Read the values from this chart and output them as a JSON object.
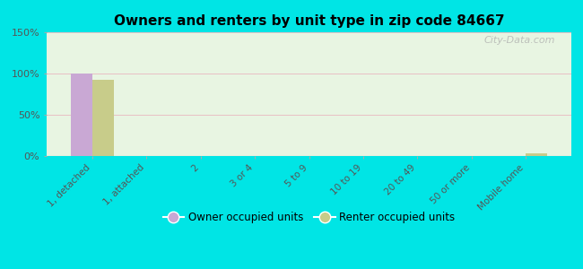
{
  "title": "Owners and renters by unit type in zip code 84667",
  "categories": [
    "1, detached",
    "1, attached",
    "2",
    "3 or 4",
    "5 to 9",
    "10 to 19",
    "20 to 49",
    "50 or more",
    "Mobile home"
  ],
  "owner_values": [
    100,
    0,
    0,
    0,
    0,
    0,
    0,
    0,
    0
  ],
  "renter_values": [
    92,
    0,
    0,
    0,
    0,
    0,
    0,
    0,
    3
  ],
  "owner_color": "#c9a8d4",
  "renter_color": "#c8cc8a",
  "background_color": "#00e5e5",
  "plot_bg_color": "#e8f5e2",
  "ylim": [
    0,
    150
  ],
  "yticks": [
    0,
    50,
    100,
    150
  ],
  "ytick_labels": [
    "0%",
    "50%",
    "100%",
    "150%"
  ],
  "legend_owner": "Owner occupied units",
  "legend_renter": "Renter occupied units",
  "watermark": "City-Data.com",
  "bar_width": 0.4
}
